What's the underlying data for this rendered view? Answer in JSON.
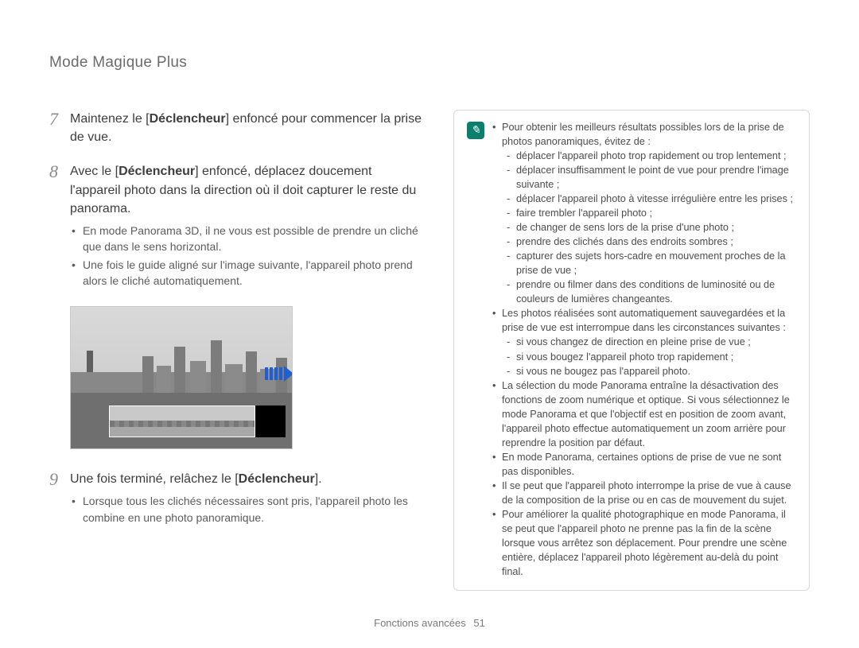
{
  "header": {
    "title": "Mode Magique Plus"
  },
  "footer": {
    "section": "Fonctions avancées",
    "page": "51"
  },
  "steps": {
    "s7": {
      "num": "7",
      "line_a": "Maintenez le [",
      "line_bold": "Déclencheur",
      "line_b": "] enfoncé pour commencer la prise de vue."
    },
    "s8": {
      "num": "8",
      "line_a": "Avec le [",
      "line_bold": "Déclencheur",
      "line_b": "] enfoncé, déplacez doucement l'appareil photo dans la direction où il doit capturer le reste du panorama.",
      "bullets": [
        "En mode Panorama 3D, il ne vous est possible de prendre un cliché que dans le sens horizontal.",
        "Une fois le guide aligné sur l'image suivante, l'appareil photo prend alors le cliché automatiquement."
      ]
    },
    "s9": {
      "num": "9",
      "line_a": "Une fois terminé, relâchez le [",
      "line_bold": "Déclencheur",
      "line_b": "].",
      "bullets": [
        "Lorsque tous les clichés nécessaires sont pris, l'appareil photo les combine en une photo panoramique."
      ]
    }
  },
  "note": {
    "items": [
      {
        "text": "Pour obtenir les meilleurs résultats possibles lors de la prise de photos panoramiques, évitez de :",
        "dashes": [
          "déplacer l'appareil photo trop rapidement ou trop lentement ;",
          "déplacer insuffisamment le point de vue pour prendre l'image suivante ;",
          "déplacer l'appareil photo à vitesse irrégulière entre les prises ;",
          "faire trembler l'appareil photo ;",
          "de changer de sens lors de la prise d'une photo ;",
          "prendre des clichés dans des endroits sombres ;",
          "capturer des sujets hors-cadre en mouvement proches de la prise de vue ;",
          "prendre ou filmer dans des conditions de luminosité ou de couleurs de lumières changeantes."
        ]
      },
      {
        "text": "Les photos réalisées sont automatiquement sauvegardées et la prise de vue est interrompue dans les circonstances suivantes :",
        "dashes": [
          "si vous changez de direction en pleine prise de vue ;",
          "si vous bougez l'appareil photo trop rapidement ;",
          "si vous ne bougez pas l'appareil photo."
        ]
      },
      {
        "text": "La sélection du mode Panorama entraîne la désactivation des fonctions de zoom numérique et optique. Si vous sélectionnez le mode Panorama et que l'objectif est en position de zoom avant, l'appareil photo effectue automatiquement un zoom arrière pour reprendre la position par défaut."
      },
      {
        "text": "En mode Panorama, certaines options de prise de vue ne sont pas disponibles."
      },
      {
        "text": "Il se peut que l'appareil photo interrompe la prise de vue à cause de la composition de la prise ou en cas de mouvement du sujet."
      },
      {
        "text": "Pour améliorer la qualité photographique en mode Panorama, il se peut que l'appareil photo ne prenne pas la fin de la scène lorsque vous arrêtez son déplacement. Pour prendre une scène entière, déplacez l'appareil photo légèrement au-delà du point final."
      }
    ]
  },
  "style": {
    "accent_blue": "#1e5fd6",
    "note_icon_bg": "#0a7f6e",
    "page_bg": "#ffffff",
    "text_color": "#4a4a4a",
    "border_color": "#d8d8d8"
  }
}
